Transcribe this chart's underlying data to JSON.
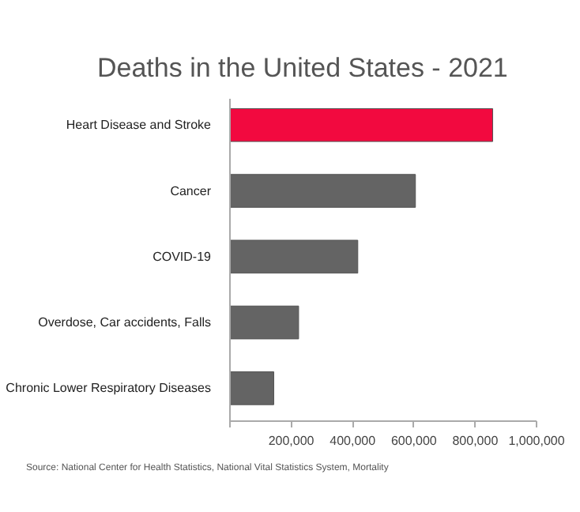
{
  "chart_data": {
    "type": "bar",
    "orientation": "horizontal",
    "title": "Deaths in the United States - 2021",
    "categories": [
      "Heart Disease and Stroke",
      "Cancer",
      "COVID-19",
      "Overdose, Car accidents, Falls",
      "Chronic Lower Respiratory Diseases"
    ],
    "values": [
      857000,
      605000,
      417000,
      224000,
      143000
    ],
    "colors": [
      "#f2093f",
      "#646464",
      "#646464",
      "#646464",
      "#646464"
    ],
    "xlim": [
      0,
      1000000
    ],
    "xticks": [
      {
        "value": 0,
        "label": null
      },
      {
        "value": 200000,
        "label": "200,000"
      },
      {
        "value": 400000,
        "label": "400,000"
      },
      {
        "value": 600000,
        "label": "600,000"
      },
      {
        "value": 800000,
        "label": "800,000"
      },
      {
        "value": 1000000,
        "label": "1,000,000"
      }
    ],
    "grid": false,
    "legend": false,
    "annotations": [
      "Source: National Center for Health Statistics, National Vital Statistics System, Mortality"
    ]
  }
}
